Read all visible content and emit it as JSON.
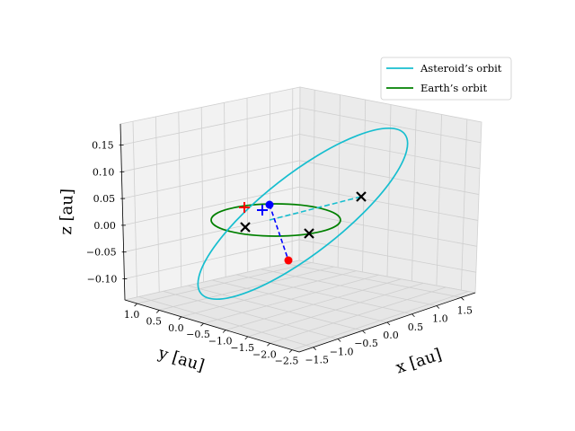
{
  "chart_data": {
    "type": "line",
    "projection": "3d",
    "xlabel": "x [au]",
    "ylabel": "y [au]",
    "zlabel": "z [au]",
    "x_ticks": [
      "−1.5",
      "−1.0",
      "−0.5",
      "0.0",
      "0.5",
      "1.0",
      "1.5"
    ],
    "y_ticks": [
      "1.0",
      "0.5",
      "0.0",
      "−0.5",
      "−1.0",
      "−1.5",
      "−2.0",
      "−2.5"
    ],
    "z_ticks": [
      "0.15",
      "0.10",
      "0.05",
      "0.00",
      "−0.05",
      "−0.10"
    ],
    "xlim": [
      -1.75,
      1.75
    ],
    "ylim": [
      -2.7,
      1.15
    ],
    "zlim": [
      -0.11,
      0.17
    ],
    "grid": true,
    "legend_position": "top-right",
    "series": [
      {
        "name": "Asteroid’s orbit",
        "color": "#17becf",
        "style": "solid"
      },
      {
        "name": "Earth’s orbit",
        "color": "#008000",
        "style": "solid"
      }
    ],
    "annotations": {
      "connector_lines": [
        {
          "color": "#17becf",
          "style": "dashed"
        },
        {
          "color": "#0000ff",
          "style": "dashed"
        }
      ],
      "markers": [
        {
          "symbol": "circle",
          "color": "#0000ff"
        },
        {
          "symbol": "circle",
          "color": "#ff0000"
        },
        {
          "symbol": "plus",
          "color": "#0000ff"
        },
        {
          "symbol": "plus",
          "color": "#ff0000"
        },
        {
          "symbol": "x",
          "color": "#000000"
        },
        {
          "symbol": "x",
          "color": "#000000"
        },
        {
          "symbol": "x",
          "color": "#000000"
        }
      ]
    }
  }
}
